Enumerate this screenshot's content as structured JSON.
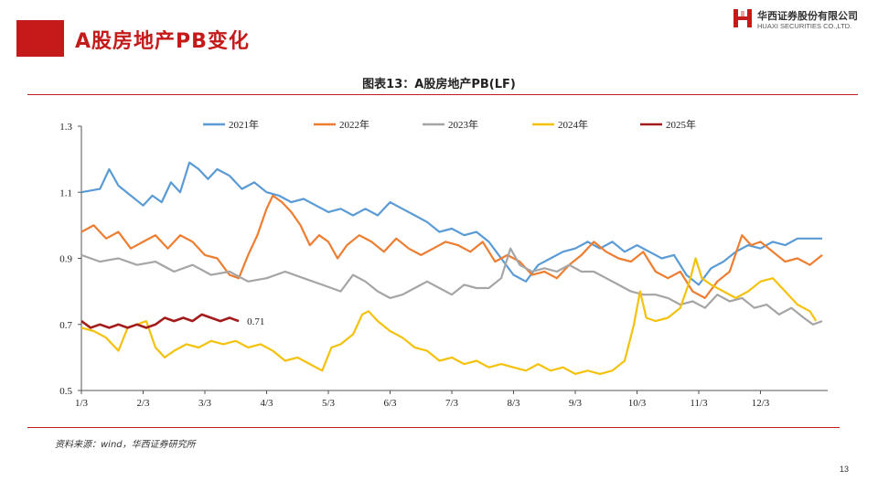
{
  "page": {
    "title": "A股房地产PB变化",
    "chart_caption": "图表13：A股房地产PB(LF)",
    "source": "资料来源：wind，华西证券研究所",
    "page_number": "13",
    "accent_color": "#c41a1a"
  },
  "logo": {
    "name_cn": "华西证券股份有限公司",
    "name_en": "HUAXI SECURITIES CO.,LTD."
  },
  "chart_data": {
    "type": "line",
    "title": "A股房地产PB(LF)",
    "xlabel": "",
    "ylabel": "",
    "ylim": [
      0.5,
      1.3
    ],
    "yticks": [
      "0.5",
      "0.7",
      "0.9",
      "1.1",
      "1.3"
    ],
    "xlim": [
      0,
      12
    ],
    "xticks": [
      {
        "x": 0,
        "label": "1/3"
      },
      {
        "x": 1,
        "label": "2/3"
      },
      {
        "x": 2,
        "label": "3/3"
      },
      {
        "x": 3,
        "label": "4/3"
      },
      {
        "x": 4,
        "label": "5/3"
      },
      {
        "x": 5,
        "label": "6/3"
      },
      {
        "x": 6,
        "label": "7/3"
      },
      {
        "x": 7,
        "label": "8/3"
      },
      {
        "x": 8,
        "label": "9/3"
      },
      {
        "x": 9,
        "label": "10/3"
      },
      {
        "x": 10,
        "label": "11/3"
      },
      {
        "x": 11,
        "label": "12/3"
      }
    ],
    "grid": false,
    "legend_position": "top",
    "annotation": {
      "series": "2025年",
      "text": "0.71"
    },
    "series": [
      {
        "name": "2021年",
        "color": "#5b9bd5",
        "points": [
          [
            0,
            1.1
          ],
          [
            0.3,
            1.11
          ],
          [
            0.45,
            1.17
          ],
          [
            0.6,
            1.12
          ],
          [
            0.8,
            1.09
          ],
          [
            1.0,
            1.06
          ],
          [
            1.15,
            1.09
          ],
          [
            1.3,
            1.07
          ],
          [
            1.45,
            1.13
          ],
          [
            1.6,
            1.1
          ],
          [
            1.75,
            1.19
          ],
          [
            1.9,
            1.17
          ],
          [
            2.05,
            1.14
          ],
          [
            2.2,
            1.17
          ],
          [
            2.4,
            1.15
          ],
          [
            2.6,
            1.11
          ],
          [
            2.8,
            1.13
          ],
          [
            3.0,
            1.1
          ],
          [
            3.2,
            1.09
          ],
          [
            3.4,
            1.07
          ],
          [
            3.6,
            1.08
          ],
          [
            3.8,
            1.06
          ],
          [
            4.0,
            1.04
          ],
          [
            4.2,
            1.05
          ],
          [
            4.4,
            1.03
          ],
          [
            4.6,
            1.05
          ],
          [
            4.8,
            1.03
          ],
          [
            5.0,
            1.07
          ],
          [
            5.2,
            1.05
          ],
          [
            5.4,
            1.03
          ],
          [
            5.6,
            1.01
          ],
          [
            5.8,
            0.98
          ],
          [
            6.0,
            0.99
          ],
          [
            6.2,
            0.97
          ],
          [
            6.4,
            0.98
          ],
          [
            6.6,
            0.95
          ],
          [
            6.8,
            0.9
          ],
          [
            7.0,
            0.85
          ],
          [
            7.2,
            0.83
          ],
          [
            7.4,
            0.88
          ],
          [
            7.6,
            0.9
          ],
          [
            7.8,
            0.92
          ],
          [
            8.0,
            0.93
          ],
          [
            8.2,
            0.95
          ],
          [
            8.4,
            0.93
          ],
          [
            8.6,
            0.95
          ],
          [
            8.8,
            0.92
          ],
          [
            9.0,
            0.94
          ],
          [
            9.2,
            0.92
          ],
          [
            9.4,
            0.9
          ],
          [
            9.6,
            0.91
          ],
          [
            9.8,
            0.85
          ],
          [
            10.0,
            0.82
          ],
          [
            10.2,
            0.87
          ],
          [
            10.4,
            0.89
          ],
          [
            10.6,
            0.92
          ],
          [
            10.8,
            0.94
          ],
          [
            11.0,
            0.93
          ],
          [
            11.2,
            0.95
          ],
          [
            11.4,
            0.94
          ],
          [
            11.6,
            0.96
          ],
          [
            11.8,
            0.96
          ],
          [
            12.0,
            0.96
          ]
        ]
      },
      {
        "name": "2022年",
        "color": "#ed7d31",
        "points": [
          [
            0,
            0.98
          ],
          [
            0.2,
            1.0
          ],
          [
            0.4,
            0.96
          ],
          [
            0.6,
            0.98
          ],
          [
            0.8,
            0.93
          ],
          [
            1.0,
            0.95
          ],
          [
            1.2,
            0.97
          ],
          [
            1.4,
            0.93
          ],
          [
            1.6,
            0.97
          ],
          [
            1.8,
            0.95
          ],
          [
            2.0,
            0.91
          ],
          [
            2.2,
            0.9
          ],
          [
            2.4,
            0.85
          ],
          [
            2.55,
            0.84
          ],
          [
            2.7,
            0.91
          ],
          [
            2.85,
            0.97
          ],
          [
            3.0,
            1.05
          ],
          [
            3.1,
            1.09
          ],
          [
            3.25,
            1.07
          ],
          [
            3.4,
            1.04
          ],
          [
            3.55,
            1.0
          ],
          [
            3.7,
            0.94
          ],
          [
            3.85,
            0.97
          ],
          [
            4.0,
            0.95
          ],
          [
            4.15,
            0.9
          ],
          [
            4.3,
            0.94
          ],
          [
            4.5,
            0.97
          ],
          [
            4.7,
            0.95
          ],
          [
            4.9,
            0.92
          ],
          [
            5.1,
            0.96
          ],
          [
            5.3,
            0.93
          ],
          [
            5.5,
            0.91
          ],
          [
            5.7,
            0.93
          ],
          [
            5.9,
            0.95
          ],
          [
            6.1,
            0.94
          ],
          [
            6.3,
            0.92
          ],
          [
            6.5,
            0.95
          ],
          [
            6.7,
            0.89
          ],
          [
            6.9,
            0.91
          ],
          [
            7.1,
            0.89
          ],
          [
            7.3,
            0.85
          ],
          [
            7.5,
            0.86
          ],
          [
            7.7,
            0.84
          ],
          [
            7.9,
            0.88
          ],
          [
            8.1,
            0.91
          ],
          [
            8.3,
            0.95
          ],
          [
            8.5,
            0.92
          ],
          [
            8.7,
            0.9
          ],
          [
            8.9,
            0.89
          ],
          [
            9.1,
            0.92
          ],
          [
            9.3,
            0.86
          ],
          [
            9.5,
            0.84
          ],
          [
            9.7,
            0.86
          ],
          [
            9.9,
            0.8
          ],
          [
            10.1,
            0.78
          ],
          [
            10.3,
            0.83
          ],
          [
            10.5,
            0.86
          ],
          [
            10.7,
            0.97
          ],
          [
            10.85,
            0.94
          ],
          [
            11.0,
            0.95
          ],
          [
            11.2,
            0.92
          ],
          [
            11.4,
            0.89
          ],
          [
            11.6,
            0.9
          ],
          [
            11.8,
            0.88
          ],
          [
            12.0,
            0.91
          ]
        ]
      },
      {
        "name": "2023年",
        "color": "#a5a5a5",
        "points": [
          [
            0,
            0.91
          ],
          [
            0.3,
            0.89
          ],
          [
            0.6,
            0.9
          ],
          [
            0.9,
            0.88
          ],
          [
            1.2,
            0.89
          ],
          [
            1.5,
            0.86
          ],
          [
            1.8,
            0.88
          ],
          [
            2.1,
            0.85
          ],
          [
            2.4,
            0.86
          ],
          [
            2.7,
            0.83
          ],
          [
            3.0,
            0.84
          ],
          [
            3.3,
            0.86
          ],
          [
            3.6,
            0.84
          ],
          [
            3.9,
            0.82
          ],
          [
            4.2,
            0.8
          ],
          [
            4.4,
            0.85
          ],
          [
            4.6,
            0.83
          ],
          [
            4.8,
            0.8
          ],
          [
            5.0,
            0.78
          ],
          [
            5.2,
            0.79
          ],
          [
            5.4,
            0.81
          ],
          [
            5.6,
            0.83
          ],
          [
            5.8,
            0.81
          ],
          [
            6.0,
            0.79
          ],
          [
            6.2,
            0.82
          ],
          [
            6.4,
            0.81
          ],
          [
            6.6,
            0.81
          ],
          [
            6.8,
            0.84
          ],
          [
            6.95,
            0.93
          ],
          [
            7.1,
            0.88
          ],
          [
            7.3,
            0.86
          ],
          [
            7.5,
            0.87
          ],
          [
            7.7,
            0.86
          ],
          [
            7.9,
            0.88
          ],
          [
            8.1,
            0.86
          ],
          [
            8.3,
            0.86
          ],
          [
            8.5,
            0.84
          ],
          [
            8.7,
            0.82
          ],
          [
            8.9,
            0.8
          ],
          [
            9.1,
            0.79
          ],
          [
            9.3,
            0.79
          ],
          [
            9.5,
            0.78
          ],
          [
            9.7,
            0.76
          ],
          [
            9.9,
            0.77
          ],
          [
            10.1,
            0.75
          ],
          [
            10.3,
            0.79
          ],
          [
            10.5,
            0.77
          ],
          [
            10.7,
            0.78
          ],
          [
            10.9,
            0.75
          ],
          [
            11.1,
            0.76
          ],
          [
            11.3,
            0.73
          ],
          [
            11.5,
            0.75
          ],
          [
            11.7,
            0.72
          ],
          [
            11.85,
            0.7
          ],
          [
            12.0,
            0.71
          ]
        ]
      },
      {
        "name": "2024年",
        "color": "#f4c20d",
        "points": [
          [
            0,
            0.69
          ],
          [
            0.2,
            0.68
          ],
          [
            0.4,
            0.66
          ],
          [
            0.6,
            0.62
          ],
          [
            0.75,
            0.69
          ],
          [
            0.9,
            0.7
          ],
          [
            1.05,
            0.71
          ],
          [
            1.2,
            0.63
          ],
          [
            1.35,
            0.6
          ],
          [
            1.5,
            0.62
          ],
          [
            1.7,
            0.64
          ],
          [
            1.9,
            0.63
          ],
          [
            2.1,
            0.65
          ],
          [
            2.3,
            0.64
          ],
          [
            2.5,
            0.65
          ],
          [
            2.7,
            0.63
          ],
          [
            2.9,
            0.64
          ],
          [
            3.1,
            0.62
          ],
          [
            3.3,
            0.59
          ],
          [
            3.5,
            0.6
          ],
          [
            3.7,
            0.58
          ],
          [
            3.9,
            0.56
          ],
          [
            4.05,
            0.63
          ],
          [
            4.2,
            0.64
          ],
          [
            4.4,
            0.67
          ],
          [
            4.55,
            0.73
          ],
          [
            4.65,
            0.74
          ],
          [
            4.8,
            0.71
          ],
          [
            5.0,
            0.68
          ],
          [
            5.2,
            0.66
          ],
          [
            5.4,
            0.63
          ],
          [
            5.6,
            0.62
          ],
          [
            5.8,
            0.59
          ],
          [
            6.0,
            0.6
          ],
          [
            6.2,
            0.58
          ],
          [
            6.4,
            0.59
          ],
          [
            6.6,
            0.57
          ],
          [
            6.8,
            0.58
          ],
          [
            7.0,
            0.57
          ],
          [
            7.2,
            0.56
          ],
          [
            7.4,
            0.58
          ],
          [
            7.6,
            0.56
          ],
          [
            7.8,
            0.57
          ],
          [
            8.0,
            0.55
          ],
          [
            8.2,
            0.56
          ],
          [
            8.4,
            0.55
          ],
          [
            8.6,
            0.56
          ],
          [
            8.8,
            0.59
          ],
          [
            8.95,
            0.7
          ],
          [
            9.05,
            0.8
          ],
          [
            9.15,
            0.72
          ],
          [
            9.3,
            0.71
          ],
          [
            9.5,
            0.72
          ],
          [
            9.7,
            0.75
          ],
          [
            9.85,
            0.83
          ],
          [
            9.95,
            0.9
          ],
          [
            10.05,
            0.84
          ],
          [
            10.2,
            0.82
          ],
          [
            10.4,
            0.8
          ],
          [
            10.6,
            0.78
          ],
          [
            10.8,
            0.8
          ],
          [
            11.0,
            0.83
          ],
          [
            11.2,
            0.84
          ],
          [
            11.4,
            0.8
          ],
          [
            11.6,
            0.76
          ],
          [
            11.8,
            0.74
          ],
          [
            11.9,
            0.71
          ]
        ]
      },
      {
        "name": "2025年",
        "color": "#a31c1c",
        "points": [
          [
            0,
            0.71
          ],
          [
            0.15,
            0.69
          ],
          [
            0.3,
            0.7
          ],
          [
            0.45,
            0.69
          ],
          [
            0.6,
            0.7
          ],
          [
            0.75,
            0.69
          ],
          [
            0.9,
            0.7
          ],
          [
            1.05,
            0.69
          ],
          [
            1.2,
            0.7
          ],
          [
            1.35,
            0.72
          ],
          [
            1.5,
            0.71
          ],
          [
            1.65,
            0.72
          ],
          [
            1.8,
            0.71
          ],
          [
            1.95,
            0.73
          ],
          [
            2.1,
            0.72
          ],
          [
            2.25,
            0.71
          ],
          [
            2.4,
            0.72
          ],
          [
            2.55,
            0.71
          ]
        ]
      }
    ]
  }
}
